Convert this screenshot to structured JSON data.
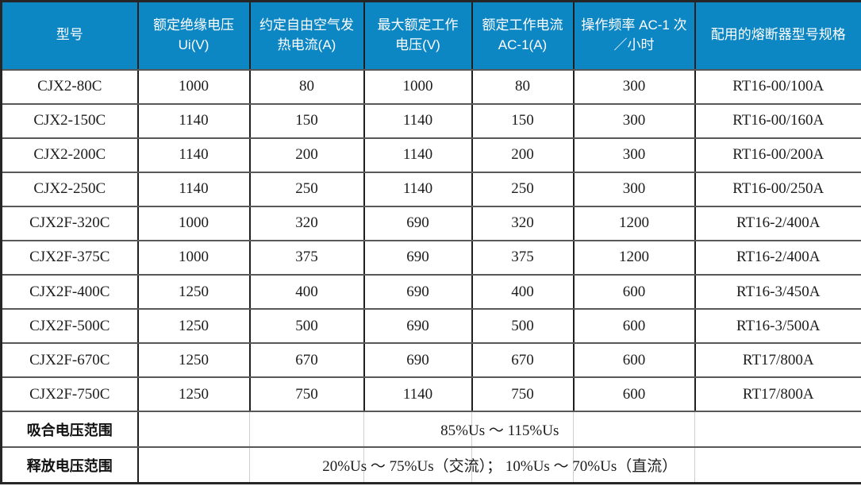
{
  "table": {
    "header_bg": "#0d86c4",
    "header_text_color": "#ffffff",
    "columns": [
      "型号",
      "额定绝缘电压 Ui(V)",
      "约定自由空气发热电流(A)",
      "最大额定工作电压(V)",
      "额定工作电流 AC-1(A)",
      "操作频率 AC-1 次／小时",
      "配用的熔断器型号规格"
    ],
    "rows": [
      [
        "CJX2-80C",
        "1000",
        "80",
        "1000",
        "80",
        "300",
        "RT16-00/100A"
      ],
      [
        "CJX2-150C",
        "1140",
        "150",
        "1140",
        "150",
        "300",
        "RT16-00/160A"
      ],
      [
        "CJX2-200C",
        "1140",
        "200",
        "1140",
        "200",
        "300",
        "RT16-00/200A"
      ],
      [
        "CJX2-250C",
        "1140",
        "250",
        "1140",
        "250",
        "300",
        "RT16-00/250A"
      ],
      [
        "CJX2F-320C",
        "1000",
        "320",
        "690",
        "320",
        "1200",
        "RT16-2/400A"
      ],
      [
        "CJX2F-375C",
        "1000",
        "375",
        "690",
        "375",
        "1200",
        "RT16-2/400A"
      ],
      [
        "CJX2F-400C",
        "1250",
        "400",
        "690",
        "400",
        "600",
        "RT16-3/450A"
      ],
      [
        "CJX2F-500C",
        "1250",
        "500",
        "690",
        "500",
        "600",
        "RT16-3/500A"
      ],
      [
        "CJX2F-670C",
        "1250",
        "670",
        "690",
        "670",
        "600",
        "RT17/800A"
      ],
      [
        "CJX2F-750C",
        "1250",
        "750",
        "1140",
        "750",
        "600",
        "RT17/800A"
      ]
    ],
    "footer": [
      {
        "label": "吸合电压范围",
        "value": "85%Us ～ 115%Us"
      },
      {
        "label": "释放电压范围",
        "value": "20%Us ～ 75%Us（交流）； 10%Us ～ 70%Us（直流）"
      }
    ]
  }
}
